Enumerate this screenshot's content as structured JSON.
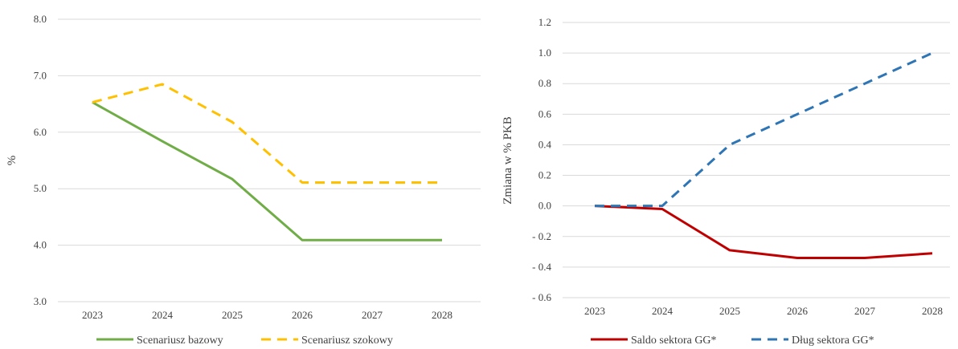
{
  "chart_data": [
    {
      "type": "line",
      "title": "",
      "xlabel": "",
      "ylabel": "%",
      "ylim": [
        3.0,
        8.0
      ],
      "ytick_step": 1.0,
      "ytick_decimals": 1,
      "grid": true,
      "legend_position": "bottom",
      "categories": [
        "2023",
        "2024",
        "2025",
        "2026",
        "2027",
        "2028"
      ],
      "series": [
        {
          "name": "Scenariusz bazowy",
          "values": [
            6.53,
            5.84,
            5.17,
            4.09,
            4.09,
            4.09
          ],
          "color": "#70ad47",
          "dash": "solid"
        },
        {
          "name": "Scenariusz szokowy",
          "values": [
            6.53,
            6.85,
            6.18,
            5.11,
            5.11,
            5.11
          ],
          "color": "#ffc000",
          "dash": "dashed"
        }
      ]
    },
    {
      "type": "line",
      "title": "",
      "xlabel": "",
      "ylabel": "Zmiana w % PKB",
      "ylim": [
        -0.6,
        1.2
      ],
      "ytick_step": 0.2,
      "ytick_decimals": 1,
      "grid": true,
      "legend_position": "bottom",
      "categories": [
        "2023",
        "2024",
        "2025",
        "2026",
        "2027",
        "2028"
      ],
      "series": [
        {
          "name": "Saldo sektora GG*",
          "values": [
            0.0,
            -0.02,
            -0.29,
            -0.34,
            -0.34,
            -0.31
          ],
          "color": "#c00000",
          "dash": "solid"
        },
        {
          "name": "Dług sektora GG*",
          "values": [
            0.0,
            0.0,
            0.4,
            0.6,
            0.8,
            1.0
          ],
          "color": "#2e75b6",
          "dash": "dashed"
        }
      ]
    }
  ]
}
